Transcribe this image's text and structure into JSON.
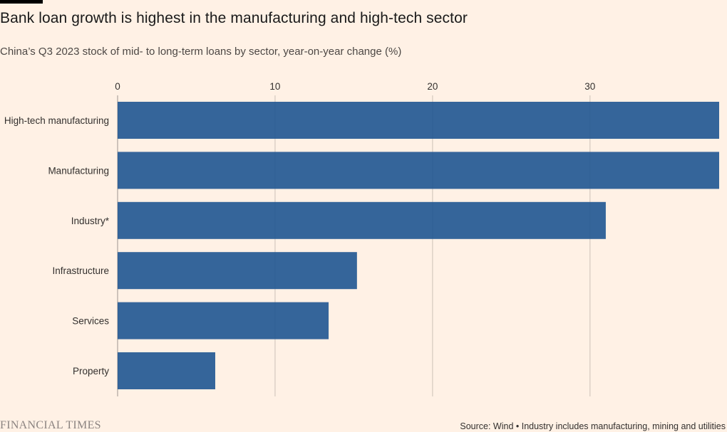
{
  "header": {
    "title": "Bank loan growth is highest in the manufacturing and high-tech sector",
    "subtitle": "China’s Q3 2023 stock of mid- to long-term loans by sector, year-on-year change (%)"
  },
  "footer": {
    "brand": "FINANCIAL TIMES",
    "source": "Source: Wind • Industry includes manufacturing, mining and utilities"
  },
  "colors": {
    "background": "#fff1e5",
    "bar": "#1f5591",
    "gridline": "#ccc1b7",
    "text": "#33302e"
  },
  "chart_data": {
    "type": "bar",
    "orientation": "horizontal",
    "categories": [
      "High-tech manufacturing",
      "Manufacturing",
      "Industry*",
      "Infrastructure",
      "Services",
      "Property"
    ],
    "values": [
      38.2,
      38.2,
      31.0,
      15.2,
      13.4,
      6.2
    ],
    "xlim": [
      0,
      38.2
    ],
    "xticks": [
      0,
      10,
      20,
      30
    ],
    "tick_labels": [
      "0",
      "10",
      "20",
      "30"
    ],
    "grid": true,
    "title": "Bank loan growth is highest in the manufacturing and high-tech sector",
    "subtitle": "China’s Q3 2023 stock of mid- to long-term loans by sector, year-on-year change (%)",
    "xlabel": "",
    "ylabel": ""
  }
}
